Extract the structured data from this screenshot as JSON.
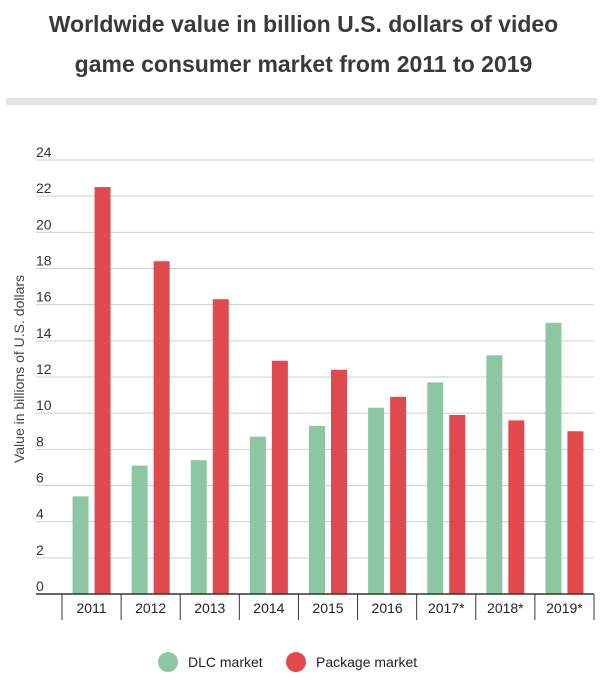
{
  "chart_data": {
    "type": "bar",
    "title": "Worldwide value in billion U.S. dollars of video game consumer market from 2011 to 2019",
    "title_lines": [
      "Worldwide value in billion U.S. dollars of video",
      "game consumer market from 2011 to 2019"
    ],
    "ylabel": "Value in billions of U.S. dollars",
    "ylim": [
      0,
      24
    ],
    "yticks": [
      0,
      2,
      4,
      6,
      8,
      10,
      12,
      14,
      16,
      18,
      20,
      22,
      24
    ],
    "categories": [
      "2011",
      "2012",
      "2013",
      "2014",
      "2015",
      "2016",
      "2017*",
      "2018*",
      "2019*"
    ],
    "series": [
      {
        "name": "DLC market",
        "color": "#8cc6a2",
        "values": [
          5.4,
          7.1,
          7.4,
          8.7,
          9.3,
          10.3,
          11.7,
          13.2,
          15.0
        ]
      },
      {
        "name": "Package market",
        "color": "#e04a4f",
        "values": [
          22.5,
          18.4,
          16.3,
          12.9,
          12.4,
          10.9,
          9.9,
          9.6,
          9.0
        ]
      }
    ],
    "grid": true,
    "legend_position": "bottom"
  }
}
